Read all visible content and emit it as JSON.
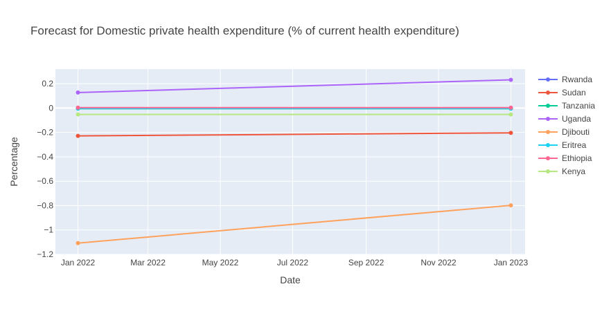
{
  "chart_data": {
    "type": "line",
    "title": "Forecast for Domestic private health expenditure (% of current health expenditure)",
    "xlabel": "Date",
    "ylabel": "Percentage",
    "x": [
      "2022-01-01",
      "2023-01-01"
    ],
    "xlim": [
      "2021-12-13",
      "2023-01-13"
    ],
    "x_ticks": [
      {
        "date": "2022-01-01",
        "label": "Jan 2022"
      },
      {
        "date": "2022-03-01",
        "label": "Mar 2022"
      },
      {
        "date": "2022-05-01",
        "label": "May 2022"
      },
      {
        "date": "2022-07-01",
        "label": "Jul 2022"
      },
      {
        "date": "2022-09-01",
        "label": "Sep 2022"
      },
      {
        "date": "2022-11-01",
        "label": "Nov 2022"
      },
      {
        "date": "2023-01-01",
        "label": "Jan 2023"
      }
    ],
    "ylim": [
      -1.2,
      0.32
    ],
    "y_ticks": [
      {
        "value": 0.2,
        "label": "0.2"
      },
      {
        "value": 0,
        "label": "0"
      },
      {
        "value": -0.2,
        "label": "−0.2"
      },
      {
        "value": -0.4,
        "label": "−0.4"
      },
      {
        "value": -0.6,
        "label": "−0.6"
      },
      {
        "value": -0.8,
        "label": "−0.8"
      },
      {
        "value": -1,
        "label": "−1"
      },
      {
        "value": -1.2,
        "label": "−1.2"
      }
    ],
    "grid": true,
    "legend_position": "right",
    "series": [
      {
        "name": "Rwanda",
        "color": "#636efa",
        "values": [
          0.002,
          0.002
        ]
      },
      {
        "name": "Sudan",
        "color": "#ef553b",
        "values": [
          -0.228,
          -0.203
        ]
      },
      {
        "name": "Tanzania",
        "color": "#00cc96",
        "values": [
          -0.005,
          -0.005
        ]
      },
      {
        "name": "Uganda",
        "color": "#ab63fa",
        "values": [
          0.128,
          0.232
        ]
      },
      {
        "name": "Djibouti",
        "color": "#ffa15a",
        "values": [
          -1.108,
          -0.798
        ]
      },
      {
        "name": "Eritrea",
        "color": "#19d3f3",
        "values": [
          -0.003,
          -0.003
        ]
      },
      {
        "name": "Ethiopia",
        "color": "#ff6692",
        "values": [
          0.004,
          0.004
        ]
      },
      {
        "name": "Kenya",
        "color": "#b6e880",
        "values": [
          -0.052,
          -0.052
        ]
      }
    ]
  }
}
